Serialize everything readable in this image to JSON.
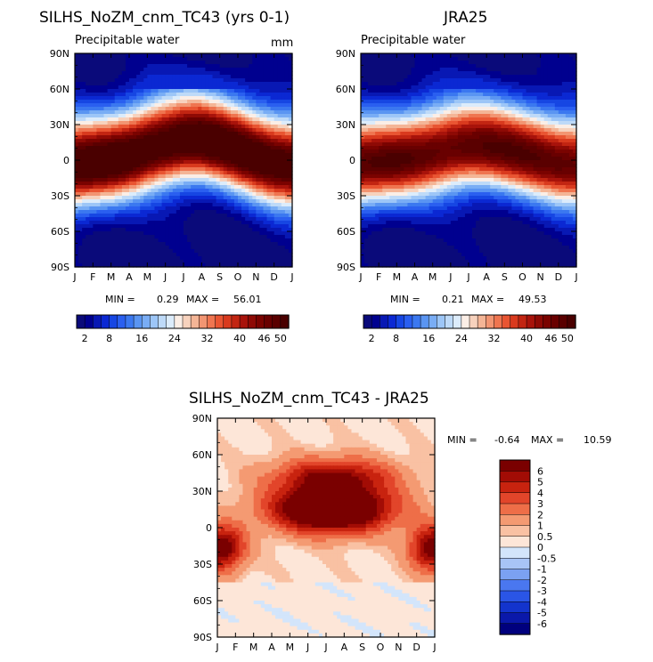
{
  "chart_data": [
    {
      "type": "heatmap",
      "title": "SILHS_NoZM_cnm_TC43 (yrs 0-1)",
      "subtitle": "Precipitable water",
      "units": "mm",
      "x_ticks": [
        "J",
        "F",
        "M",
        "A",
        "M",
        "J",
        "J",
        "A",
        "S",
        "O",
        "N",
        "D",
        "J"
      ],
      "y_ticks": [
        "90N",
        "60N",
        "30N",
        "0",
        "30S",
        "60S",
        "90S"
      ],
      "stats": {
        "label_min": "MIN =",
        "min": "0.29",
        "label_max": "MAX =",
        "max": "56.01"
      },
      "colorbar_labels": [
        "2",
        "8",
        "16",
        "24",
        "32",
        "40",
        "46",
        "50"
      ],
      "levels": [
        2,
        4,
        6,
        8,
        10,
        12,
        14,
        16,
        18,
        20,
        22,
        24,
        26,
        28,
        30,
        32,
        34,
        36,
        38,
        40,
        42,
        44,
        46,
        48,
        50
      ],
      "ylim": [
        -90,
        90
      ],
      "max_lat_by_month": [
        -5,
        -3,
        0,
        4,
        9,
        13,
        16,
        17,
        14,
        9,
        3,
        -2,
        -5
      ],
      "peak_value": 56.01
    },
    {
      "type": "heatmap",
      "title": "JRA25",
      "subtitle": "Precipitable water",
      "units": "",
      "x_ticks": [
        "J",
        "F",
        "M",
        "A",
        "M",
        "J",
        "J",
        "A",
        "S",
        "O",
        "N",
        "D",
        "J"
      ],
      "y_ticks": [
        "90N",
        "60N",
        "30N",
        "0",
        "30S",
        "60S",
        "90S"
      ],
      "stats": {
        "label_min": "MIN =",
        "min": "0.21",
        "label_max": "MAX =",
        "max": "49.53"
      },
      "colorbar_labels": [
        "2",
        "8",
        "16",
        "24",
        "32",
        "40",
        "46",
        "50"
      ],
      "levels": [
        2,
        4,
        6,
        8,
        10,
        12,
        14,
        16,
        18,
        20,
        22,
        24,
        26,
        28,
        30,
        32,
        34,
        36,
        38,
        40,
        42,
        44,
        46,
        48,
        50
      ],
      "ylim": [
        -90,
        90
      ],
      "max_lat_by_month": [
        -4,
        -2,
        0,
        3,
        6,
        9,
        11,
        11,
        9,
        6,
        2,
        -2,
        -4
      ],
      "peak_value": 49.53
    },
    {
      "type": "heatmap",
      "title": "SILHS_NoZM_cnm_TC43 - JRA25",
      "x_ticks": [
        "J",
        "F",
        "M",
        "A",
        "M",
        "J",
        "J",
        "A",
        "S",
        "O",
        "N",
        "D",
        "J"
      ],
      "y_ticks": [
        "90N",
        "60N",
        "30N",
        "0",
        "30S",
        "60S",
        "90S"
      ],
      "stats": {
        "label_min": "MIN =",
        "min": "-0.64",
        "label_max": "MAX =",
        "max": "10.59"
      },
      "colorbar_labels": [
        "6",
        "5",
        "4",
        "3",
        "2",
        "1",
        "0.5",
        "0",
        "-0.5",
        "-1",
        "-2",
        "-3",
        "-4",
        "-5",
        "-6"
      ],
      "levels": [
        -6,
        -5,
        -4,
        -3,
        -2,
        -1,
        -0.5,
        0,
        0.5,
        1,
        2,
        3,
        4,
        5,
        6
      ],
      "ylim": [
        -90,
        90
      ],
      "hotspots": [
        {
          "month": 6.3,
          "lat": 15,
          "amp": 10.6
        },
        {
          "month": 0.2,
          "lat": -17,
          "amp": 7.0
        },
        {
          "month": 11.9,
          "lat": -17,
          "amp": 7.0
        },
        {
          "month": 6.4,
          "lat": 42,
          "amp": 5.5
        }
      ]
    }
  ],
  "colors": {
    "seq": [
      "#0a0a7a",
      "#00008f",
      "#0818b4",
      "#0b28d3",
      "#1646e3",
      "#2a5ff0",
      "#3b78f0",
      "#5a95f2",
      "#79adf5",
      "#9dc6f7",
      "#bedaf8",
      "#dcecfb",
      "#fbeee6",
      "#f7d2bd",
      "#f4b596",
      "#f29572",
      "#ef7550",
      "#e95532",
      "#d93a1e",
      "#c22512",
      "#a8130b",
      "#8e0a05",
      "#7a0300",
      "#690000",
      "#5a0000",
      "#4a0000"
    ],
    "div": [
      "#00007e",
      "#0a18aa",
      "#1334cd",
      "#2a55e6",
      "#4a77f0",
      "#7ba1f2",
      "#a8c4f6",
      "#d3e5fb",
      "#fde6d8",
      "#f9c1a3",
      "#f49a72",
      "#ee6e48",
      "#e2452a",
      "#c8230f",
      "#a20c05",
      "#7a0000"
    ]
  }
}
